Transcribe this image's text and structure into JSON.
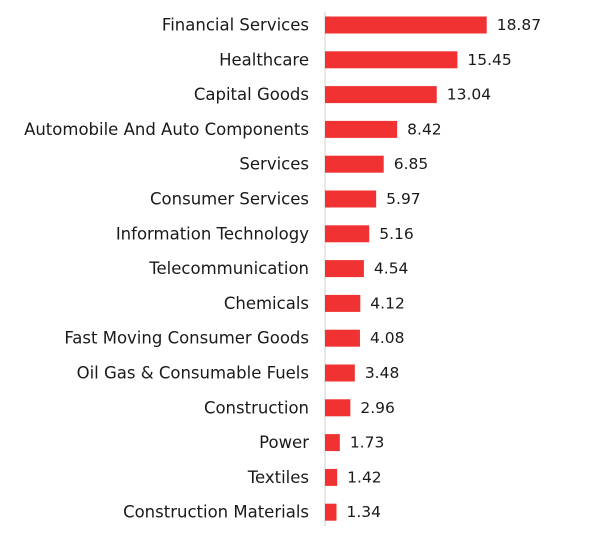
{
  "chart_data": {
    "type": "bar",
    "orientation": "horizontal",
    "title": "",
    "xlabel": "",
    "ylabel": "",
    "grid": false,
    "legend": "none",
    "bar_color": "#f03232",
    "xlim": [
      0,
      20
    ],
    "categories": [
      "Financial Services",
      "Healthcare",
      "Capital Goods",
      "Automobile And Auto Components",
      "Services",
      "Consumer Services",
      "Information Technology",
      "Telecommunication",
      "Chemicals",
      "Fast Moving Consumer Goods",
      "Oil Gas & Consumable Fuels",
      "Construction",
      "Power",
      "Textiles",
      "Construction Materials"
    ],
    "values": [
      18.87,
      15.45,
      13.04,
      8.42,
      6.85,
      5.97,
      5.16,
      4.54,
      4.12,
      4.08,
      3.48,
      2.96,
      1.73,
      1.42,
      1.34
    ],
    "value_labels": [
      "18.87",
      "15.45",
      "13.04",
      "8.42",
      "6.85",
      "5.97",
      "5.16",
      "4.54",
      "4.12",
      "4.08",
      "3.48",
      "2.96",
      "1.73",
      "1.42",
      "1.34"
    ]
  }
}
